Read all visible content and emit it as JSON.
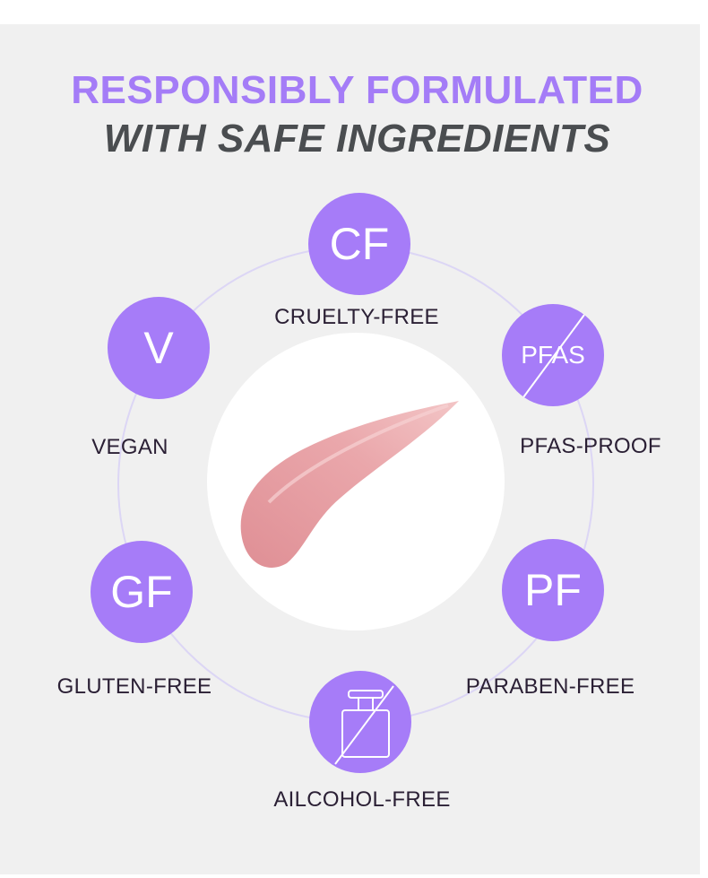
{
  "heading": {
    "line1": "RESPONSIBLY FORMULATED",
    "line2": "WITH SAFE INGREDIENTS"
  },
  "colors": {
    "accent": "#a67cf8",
    "heading_dark": "#4a4d50",
    "background": "#f0f0f0",
    "swatch": "#e59ca0"
  },
  "badges": [
    {
      "icon_text": "CF",
      "label": "CRUELTY-FREE"
    },
    {
      "icon_text": "V",
      "label": "VEGAN"
    },
    {
      "icon_text": "PFAS",
      "label": "PFAS-PROOF"
    },
    {
      "icon_text": "GF",
      "label": "GLUTEN-FREE"
    },
    {
      "icon_text": "PF",
      "label": "PARABEN-FREE"
    },
    {
      "icon_text": "",
      "icon": "crossed-bottle-icon",
      "label": "AILCOHOL-FREE"
    }
  ]
}
